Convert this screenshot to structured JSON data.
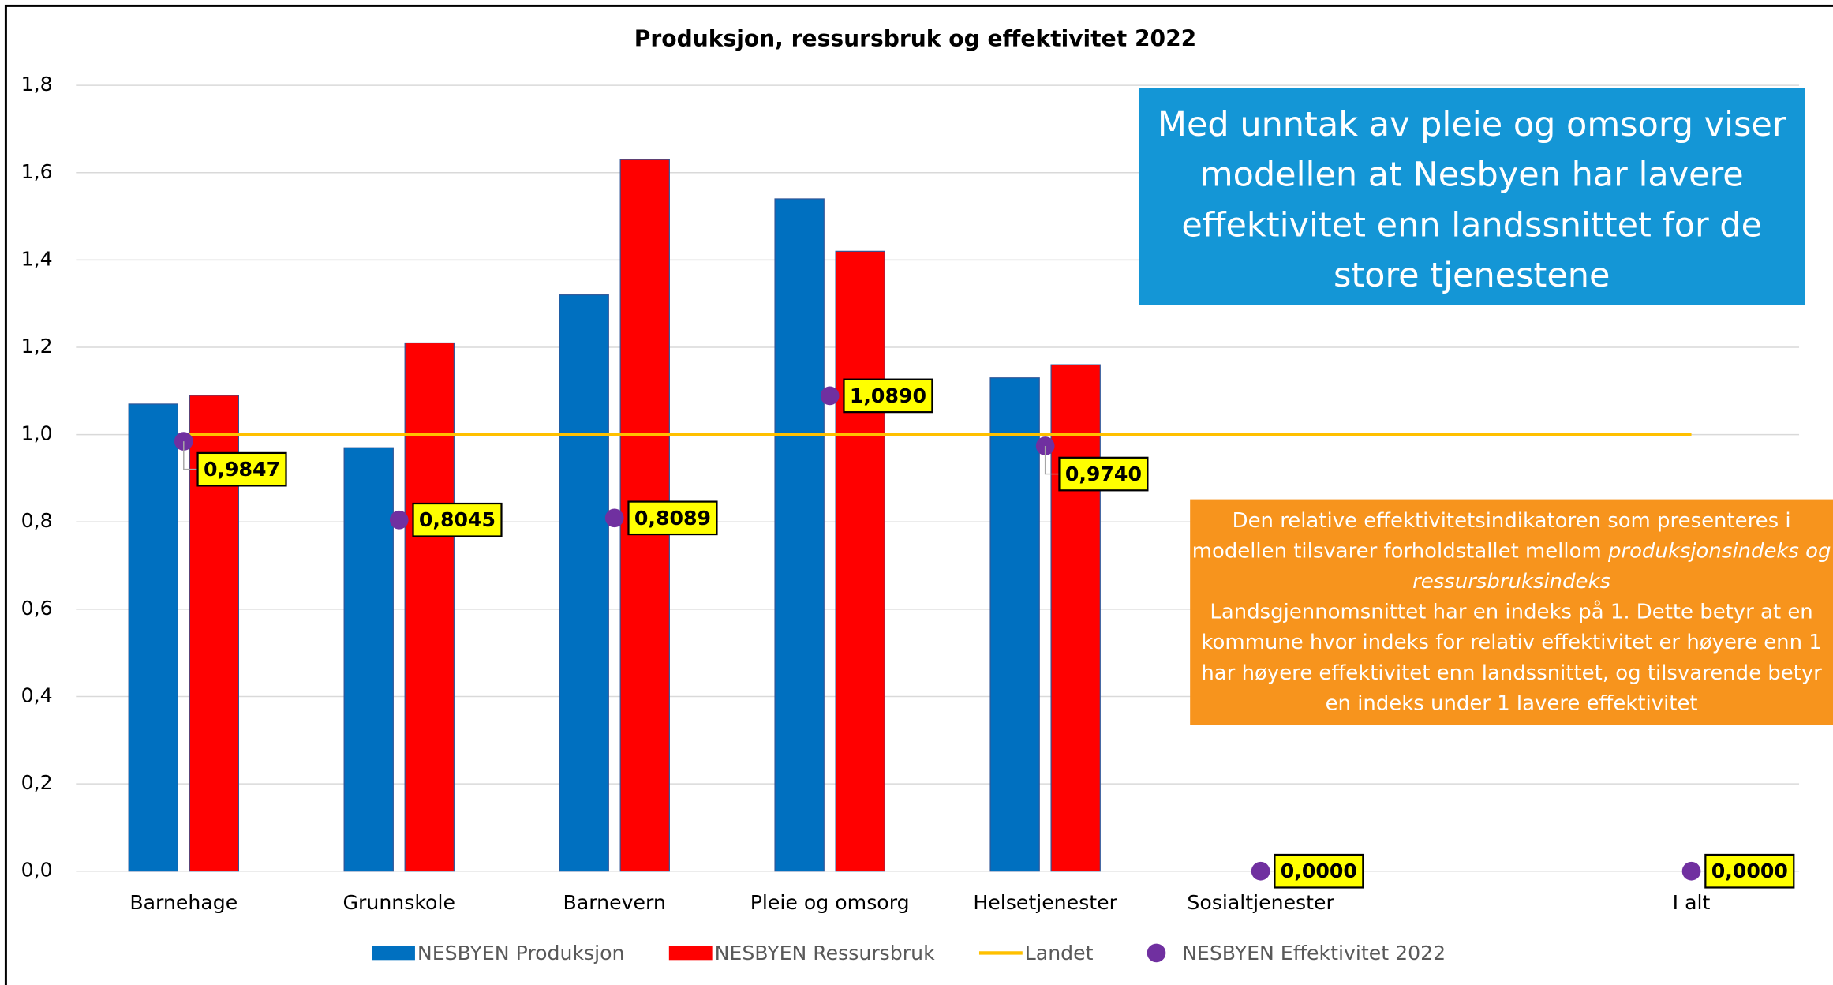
{
  "chart_data": {
    "type": "bar",
    "title": "Produksjon, ressursbruk og effektivitet 2022",
    "categories": [
      "Barnehage",
      "Grunnskole",
      "Barnevern",
      "Pleie og omsorg",
      "Helsetjenester",
      "Sosialtjenester",
      null,
      "I alt"
    ],
    "ylim": [
      0,
      1.8
    ],
    "yticks": [
      {
        "value": 0,
        "label": "0,0"
      },
      {
        "value": 0.2,
        "label": "0,2"
      },
      {
        "value": 0.4,
        "label": "0,4"
      },
      {
        "value": 0.6,
        "label": "0,6"
      },
      {
        "value": 0.8,
        "label": "0,8"
      },
      {
        "value": 1,
        "label": "1,0"
      },
      {
        "value": 1.2,
        "label": "1,2"
      },
      {
        "value": 1.4,
        "label": "1,4"
      },
      {
        "value": 1.6,
        "label": "1,6"
      },
      {
        "value": 1.8,
        "label": "1,8"
      }
    ],
    "grid": true,
    "legend": "bottom",
    "series": [
      {
        "name": "NESBYEN Produksjon",
        "type": "bar",
        "color": "#0070C0",
        "values": [
          1.07,
          0.97,
          1.32,
          1.54,
          1.13,
          null,
          null,
          null
        ]
      },
      {
        "name": "NESBYEN Ressursbruk",
        "type": "bar",
        "color": "#FF0000",
        "values": [
          1.09,
          1.21,
          1.63,
          1.42,
          1.16,
          null,
          null,
          null
        ]
      },
      {
        "name": "Landet",
        "type": "line",
        "color": "#FFC000",
        "values": [
          1,
          1,
          1,
          1,
          1,
          1,
          1,
          1
        ]
      },
      {
        "name": "NESBYEN Effektivitet 2022",
        "type": "scatter",
        "color": "#7030A0",
        "values": [
          0.9847,
          0.8045,
          0.8089,
          1.089,
          0.974,
          0,
          null,
          0
        ],
        "value_labels": [
          "0,9847",
          "0,8045",
          "0,8089",
          "1,0890",
          "0,9740",
          "0,0000",
          null,
          "0,0000"
        ]
      }
    ],
    "annotations": [
      {
        "text": "Med unntak av pleie og omsorg viser modellen at Nesbyen har lavere effektivitet enn landssnittet for de store tjenestene",
        "color": "#1496D6"
      },
      {
        "color": "#F7941D",
        "parts": [
          {
            "text": "Den relative effektivitetsindikatoren som presenteres i modellen tilsvarer forholdstallet mellom "
          },
          {
            "text": "produksjonsindeks og ressursbruksindeks",
            "italic": true
          },
          {
            "text": "Landsgjennomsnittet har en indeks på 1. Dette betyr at en kommune hvor indeks for relativ effektivitet er høyere enn 1 har høyere effektivitet enn landssnittet, og tilsvarende betyr en indeks under 1 lavere effektivitet",
            "newline": true
          }
        ]
      }
    ]
  }
}
